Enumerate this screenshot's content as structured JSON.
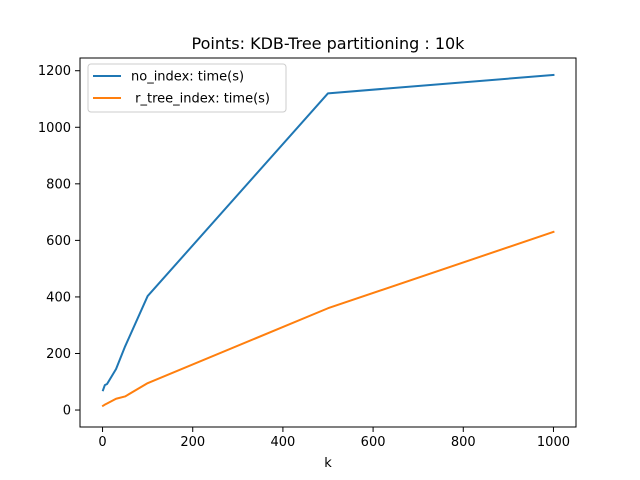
{
  "chart_data": {
    "type": "line",
    "title": "Points: KDB-Tree partitioning : 10k",
    "xlabel": "k",
    "ylabel": "",
    "xlim": [
      -50,
      1050
    ],
    "ylim": [
      -60,
      1245
    ],
    "xticks": [
      0,
      200,
      400,
      600,
      800,
      1000
    ],
    "yticks": [
      0,
      200,
      400,
      600,
      800,
      1000,
      1200
    ],
    "grid": false,
    "legend_position": "upper-left",
    "series": [
      {
        "name": "no_index: time(s)",
        "color": "#1f77b4",
        "x": [
          1,
          5,
          10,
          30,
          50,
          100,
          500,
          1000
        ],
        "y": [
          70,
          88,
          92,
          145,
          225,
          403,
          1120,
          1185
        ]
      },
      {
        "name": " r_tree_index: time(s)",
        "color": "#ff7f0e",
        "x": [
          1,
          5,
          10,
          30,
          50,
          100,
          500,
          1000
        ],
        "y": [
          15,
          19,
          23,
          40,
          48,
          95,
          360,
          630
        ]
      }
    ]
  }
}
